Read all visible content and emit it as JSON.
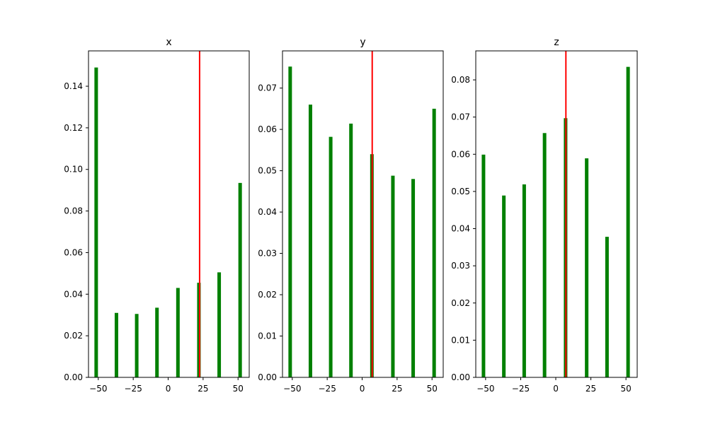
{
  "chart_data": [
    {
      "type": "bar",
      "title": "x",
      "x": [
        -51.5,
        -37,
        -22.5,
        -8,
        7,
        22,
        36.5,
        51.5
      ],
      "values": [
        0.149,
        0.031,
        0.0305,
        0.0335,
        0.043,
        0.0455,
        0.0505,
        0.0935
      ],
      "xlim": [
        -57,
        58
      ],
      "ylim": [
        0,
        0.157
      ],
      "xticks": [
        -50,
        -25,
        0,
        25,
        50
      ],
      "xtick_labels": [
        "−50",
        "−25",
        "0",
        "25",
        "50"
      ],
      "yticks": [
        0,
        0.02,
        0.04,
        0.06,
        0.08,
        0.1,
        0.12,
        0.14
      ],
      "ytick_labels": [
        "0.00",
        "0.02",
        "0.04",
        "0.06",
        "0.08",
        "0.10",
        "0.12",
        "0.14"
      ],
      "vline": 22.5
    },
    {
      "type": "bar",
      "title": "y",
      "x": [
        -51.5,
        -37,
        -22.5,
        -8,
        7,
        22,
        36.5,
        51.5
      ],
      "values": [
        0.0752,
        0.066,
        0.0582,
        0.0614,
        0.054,
        0.0488,
        0.048,
        0.065
      ],
      "xlim": [
        -57,
        58
      ],
      "ylim": [
        0,
        0.079
      ],
      "xticks": [
        -50,
        -25,
        0,
        25,
        50
      ],
      "xtick_labels": [
        "−50",
        "−25",
        "0",
        "25",
        "50"
      ],
      "yticks": [
        0,
        0.01,
        0.02,
        0.03,
        0.04,
        0.05,
        0.06,
        0.07
      ],
      "ytick_labels": [
        "0.00",
        "0.01",
        "0.02",
        "0.03",
        "0.04",
        "0.05",
        "0.06",
        "0.07"
      ],
      "vline": 7.2
    },
    {
      "type": "bar",
      "title": "z",
      "x": [
        -51.5,
        -37,
        -22.5,
        -8,
        7,
        22,
        36.5,
        51.5
      ],
      "values": [
        0.0599,
        0.0489,
        0.0519,
        0.0657,
        0.0697,
        0.0589,
        0.0378,
        0.0835
      ],
      "xlim": [
        -57,
        58
      ],
      "ylim": [
        0,
        0.0878
      ],
      "xticks": [
        -50,
        -25,
        0,
        25,
        50
      ],
      "xtick_labels": [
        "−50",
        "−25",
        "0",
        "25",
        "50"
      ],
      "yticks": [
        0,
        0.01,
        0.02,
        0.03,
        0.04,
        0.05,
        0.06,
        0.07,
        0.08
      ],
      "ytick_labels": [
        "0.00",
        "0.01",
        "0.02",
        "0.03",
        "0.04",
        "0.05",
        "0.06",
        "0.07",
        "0.08"
      ],
      "vline": 7.2
    }
  ],
  "colors": {
    "bar": "#008000",
    "vline": "#ff0000",
    "axis": "#000000"
  }
}
